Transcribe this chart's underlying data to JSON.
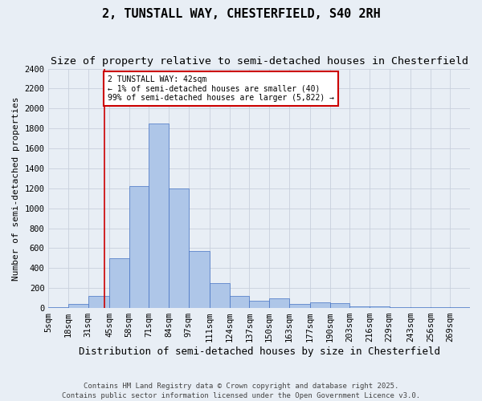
{
  "title": "2, TUNSTALL WAY, CHESTERFIELD, S40 2RH",
  "subtitle": "Size of property relative to semi-detached houses in Chesterfield",
  "xlabel": "Distribution of semi-detached houses by size in Chesterfield",
  "ylabel": "Number of semi-detached properties",
  "footer": "Contains HM Land Registry data © Crown copyright and database right 2025.\nContains public sector information licensed under the Open Government Licence v3.0.",
  "annotation_title": "2 TUNSTALL WAY: 42sqm",
  "annotation_line2": "← 1% of semi-detached houses are smaller (40)",
  "annotation_line3": "99% of semi-detached houses are larger (5,822) →",
  "property_size": 42,
  "bar_labels": [
    "5sqm",
    "18sqm",
    "31sqm",
    "45sqm",
    "58sqm",
    "71sqm",
    "84sqm",
    "97sqm",
    "111sqm",
    "124sqm",
    "137sqm",
    "150sqm",
    "163sqm",
    "177sqm",
    "190sqm",
    "203sqm",
    "216sqm",
    "229sqm",
    "243sqm",
    "256sqm",
    "269sqm"
  ],
  "bin_edges": [
    5,
    18,
    31,
    45,
    58,
    71,
    84,
    97,
    111,
    124,
    137,
    150,
    163,
    177,
    190,
    203,
    216,
    229,
    243,
    256,
    269,
    282
  ],
  "bar_heights": [
    10,
    40,
    120,
    500,
    1220,
    1850,
    1200,
    570,
    250,
    120,
    70,
    100,
    40,
    60,
    50,
    20,
    15,
    10,
    5,
    5,
    5
  ],
  "bar_color": "#aec6e8",
  "bar_edge_color": "#4472c4",
  "vline_color": "#cc0000",
  "vline_x": 42,
  "annotation_box_color": "#cc0000",
  "ylim": [
    0,
    2400
  ],
  "yticks": [
    0,
    200,
    400,
    600,
    800,
    1000,
    1200,
    1400,
    1600,
    1800,
    2000,
    2200,
    2400
  ],
  "grid_color": "#c8d0dc",
  "background_color": "#e8eef5",
  "title_fontsize": 11,
  "subtitle_fontsize": 9.5,
  "xlabel_fontsize": 9,
  "ylabel_fontsize": 8,
  "tick_fontsize": 7.5,
  "annotation_fontsize": 7,
  "footer_fontsize": 6.5
}
